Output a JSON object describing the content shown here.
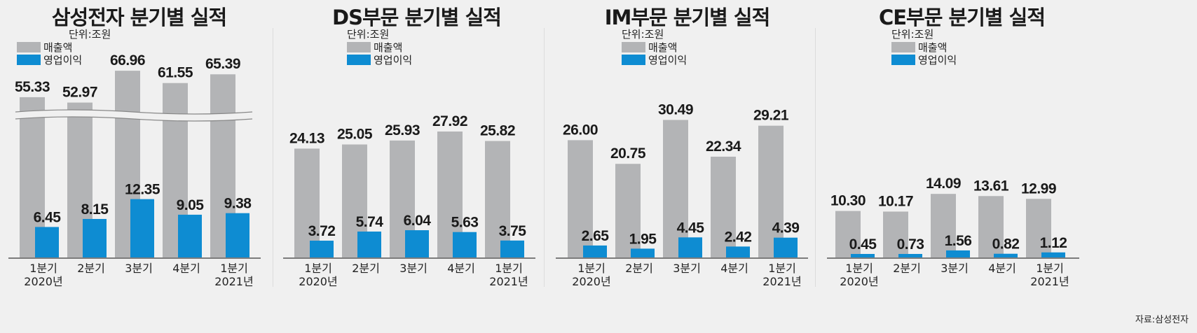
{
  "unit_label": "단위:조원",
  "legend": {
    "revenue": "매출액",
    "profit": "영업이익"
  },
  "colors": {
    "revenue": "#b3b4b6",
    "profit": "#0e8cd2",
    "axis": "#555555",
    "text": "#1a1a1a"
  },
  "source": "자료:삼성전자",
  "chart_data": [
    {
      "type": "bar",
      "title": "삼성전자 분기별 실적",
      "categories": [
        [
          "1분기",
          "2020년"
        ],
        [
          "2분기",
          ""
        ],
        [
          "3분기",
          ""
        ],
        [
          "4분기",
          ""
        ],
        [
          "1분기",
          "2021년"
        ]
      ],
      "series": [
        {
          "name": "매출액",
          "values": [
            55.33,
            52.97,
            66.96,
            61.55,
            65.39
          ],
          "labels": [
            "55.33",
            "52.97",
            "66.96",
            "61.55",
            "65.39"
          ]
        },
        {
          "name": "영업이익",
          "values": [
            6.45,
            8.15,
            12.35,
            9.05,
            9.38
          ],
          "labels": [
            "6.45",
            "8.15",
            "12.35",
            "9.05",
            "9.38"
          ]
        }
      ],
      "broken_axis": true,
      "ylim": [
        0,
        70
      ]
    },
    {
      "type": "bar",
      "title": "DS부문 분기별 실적",
      "categories": [
        [
          "1분기",
          "2020년"
        ],
        [
          "2분기",
          ""
        ],
        [
          "3분기",
          ""
        ],
        [
          "4분기",
          ""
        ],
        [
          "1분기",
          "2021년"
        ]
      ],
      "series": [
        {
          "name": "매출액",
          "values": [
            24.13,
            25.05,
            25.93,
            27.92,
            25.82
          ],
          "labels": [
            "24.13",
            "25.05",
            "25.93",
            "27.92",
            "25.82"
          ]
        },
        {
          "name": "영업이익",
          "values": [
            3.72,
            5.74,
            6.04,
            5.63,
            3.75
          ],
          "labels": [
            "3.72",
            "5.74",
            "6.04",
            "5.63",
            "3.75"
          ]
        }
      ],
      "broken_axis": false,
      "ylim": [
        0,
        38
      ]
    },
    {
      "type": "bar",
      "title": "IM부문 분기별 실적",
      "categories": [
        [
          "1분기",
          "2020년"
        ],
        [
          "2분기",
          ""
        ],
        [
          "3분기",
          ""
        ],
        [
          "4분기",
          ""
        ],
        [
          "1분기",
          "2021년"
        ]
      ],
      "series": [
        {
          "name": "매출액",
          "values": [
            26.0,
            20.75,
            30.49,
            22.34,
            29.21
          ],
          "labels": [
            "26.00",
            "20.75",
            "30.49",
            "22.34",
            "29.21"
          ]
        },
        {
          "name": "영업이익",
          "values": [
            2.65,
            1.95,
            4.45,
            2.42,
            4.39
          ],
          "labels": [
            "2.65",
            "1.95",
            "4.45",
            "2.42",
            "4.39"
          ]
        }
      ],
      "broken_axis": false,
      "ylim": [
        0,
        38
      ]
    },
    {
      "type": "bar",
      "title": "CE부문 분기별 실적",
      "categories": [
        [
          "1분기",
          "2020년"
        ],
        [
          "2분기",
          ""
        ],
        [
          "3분기",
          ""
        ],
        [
          "4분기",
          ""
        ],
        [
          "1분기",
          "2021년"
        ]
      ],
      "series": [
        {
          "name": "매출액",
          "values": [
            10.3,
            10.17,
            14.09,
            13.61,
            12.99
          ],
          "labels": [
            "10.30",
            "10.17",
            "14.09",
            "13.61",
            "12.99"
          ]
        },
        {
          "name": "영업이익",
          "values": [
            0.45,
            0.73,
            1.56,
            0.82,
            1.12
          ],
          "labels": [
            "0.45",
            "0.73",
            "1.56",
            "0.82",
            "1.12"
          ]
        }
      ],
      "broken_axis": false,
      "ylim": [
        0,
        38
      ]
    }
  ]
}
